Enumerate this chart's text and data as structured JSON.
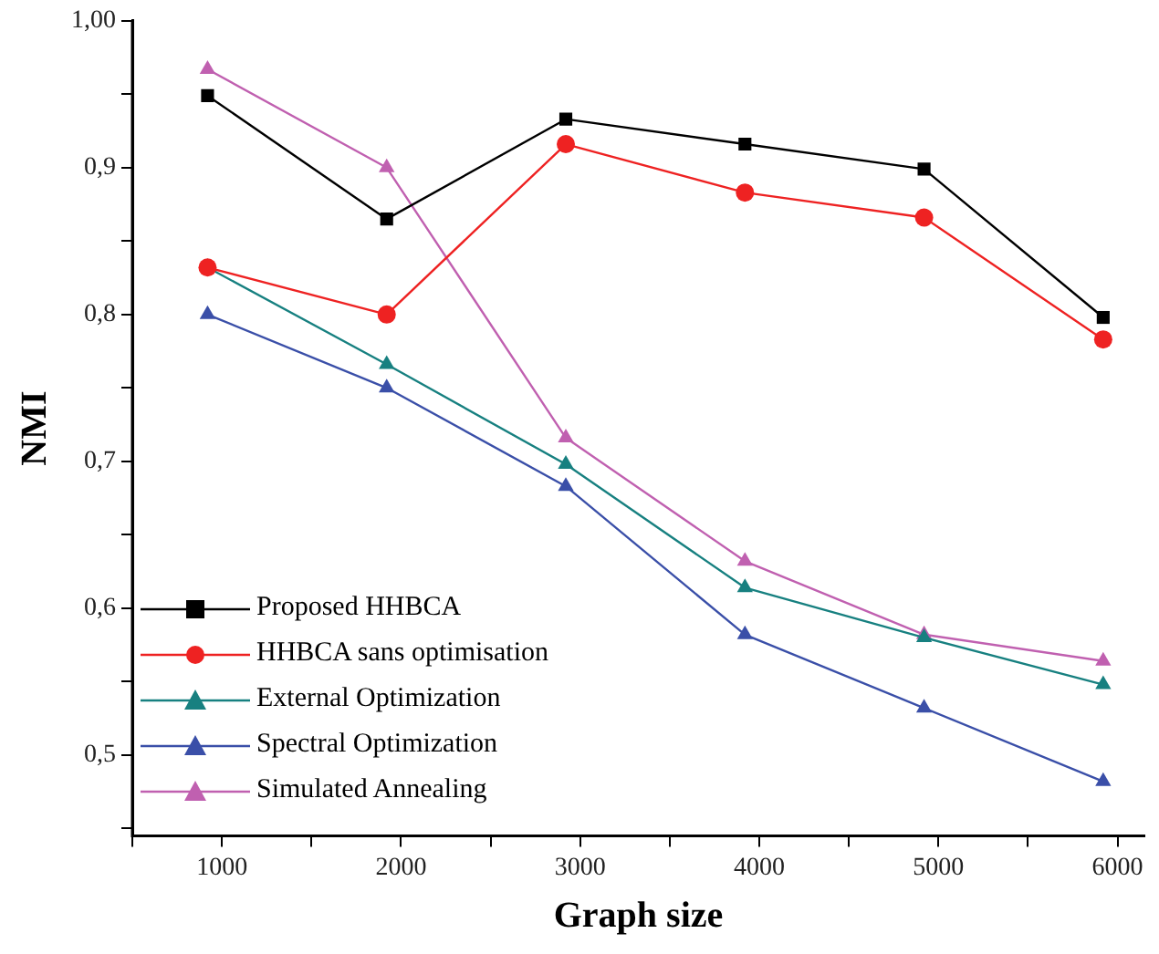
{
  "chart_data": {
    "type": "line",
    "xlabel": "Graph size",
    "ylabel": "NMI",
    "x": [
      920,
      1920,
      2920,
      3920,
      4920,
      5920
    ],
    "series": [
      {
        "name": "Proposed HHBCA",
        "color": "#000000",
        "marker": "square",
        "values": [
          0.949,
          0.865,
          0.933,
          0.916,
          0.899,
          0.798
        ]
      },
      {
        "name": "HHBCA sans optimisation",
        "color": "#ee2222",
        "marker": "circle",
        "values": [
          0.832,
          0.8,
          0.916,
          0.883,
          0.866,
          0.783
        ]
      },
      {
        "name": "External Optimization",
        "color": "#178080",
        "marker": "triangle",
        "values": [
          0.832,
          0.766,
          0.698,
          0.614,
          0.58,
          0.548
        ]
      },
      {
        "name": "Spectral Optimization",
        "color": "#3a4fa8",
        "marker": "triangle",
        "values": [
          0.8,
          0.75,
          0.683,
          0.582,
          0.532,
          0.482
        ]
      },
      {
        "name": "Simulated Annealing",
        "color": "#c060b0",
        "marker": "triangle",
        "values": [
          0.967,
          0.9,
          0.716,
          0.632,
          0.582,
          0.564
        ]
      }
    ],
    "xlim": [
      500,
      6150
    ],
    "xticks": [
      {
        "value": 500,
        "label": null
      },
      1000,
      {
        "value": 1500,
        "label": null
      },
      2000,
      {
        "value": 2500,
        "label": null
      },
      3000,
      {
        "value": 3500,
        "label": null
      },
      4000,
      {
        "value": 4500,
        "label": null
      },
      5000,
      {
        "value": 5500,
        "label": null
      },
      6000
    ],
    "ylim": [
      0.445,
      1.0
    ],
    "yticks": [
      {
        "value": 0.45,
        "label": null
      },
      {
        "value": 0.5,
        "label": "0,5"
      },
      {
        "value": 0.55,
        "label": null
      },
      {
        "value": 0.6,
        "label": "0,6"
      },
      {
        "value": 0.65,
        "label": null
      },
      {
        "value": 0.7,
        "label": "0,7"
      },
      {
        "value": 0.75,
        "label": null
      },
      {
        "value": 0.8,
        "label": "0,8"
      },
      {
        "value": 0.85,
        "label": null
      },
      {
        "value": 0.9,
        "label": "0,9"
      },
      {
        "value": 0.95,
        "label": null
      },
      {
        "value": 1.0,
        "label": "1,00"
      }
    ],
    "grid": false,
    "legend": "bottom left",
    "line_style": "solid"
  }
}
